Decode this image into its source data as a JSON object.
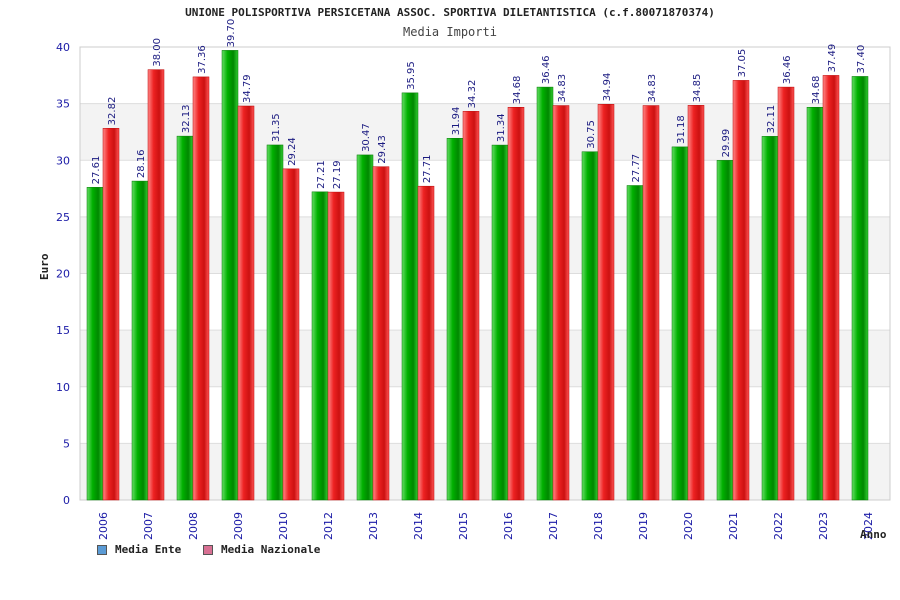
{
  "chart_data": {
    "type": "bar",
    "title": "UNIONE POLISPORTIVA PERSICETANA ASSOC. SPORTIVA DILETANTISTICA (c.f.80071870374)",
    "subtitle": "Media Importi",
    "xlabel": "Anno",
    "ylabel": "Euro",
    "ylim": [
      0,
      40
    ],
    "yticks": [
      0,
      5,
      10,
      15,
      20,
      25,
      30,
      35,
      40
    ],
    "categories": [
      "2006",
      "2007",
      "2008",
      "2009",
      "2010",
      "2012",
      "2013",
      "2014",
      "2015",
      "2016",
      "2017",
      "2018",
      "2019",
      "2020",
      "2021",
      "2022",
      "2023",
      "2024"
    ],
    "series": [
      {
        "name": "Media Ente",
        "legend_color": "#5b9bd5",
        "bar_color": "#00aa00",
        "values": [
          27.61,
          28.16,
          32.13,
          39.7,
          31.35,
          27.21,
          30.47,
          35.95,
          31.94,
          31.34,
          36.46,
          30.75,
          27.77,
          31.18,
          29.99,
          32.11,
          34.68,
          37.4
        ],
        "labels": [
          "27.61",
          "28.16",
          "32.13",
          "39.70",
          "31.35",
          "27.21",
          "30.47",
          "35.95",
          "31.94",
          "31.34",
          "36.46",
          "30.75",
          "27.77",
          "31.18",
          "29.99",
          "32.11",
          "34.68",
          "37.40"
        ]
      },
      {
        "name": "Media Nazionale",
        "legend_color": "#d87093",
        "bar_color": "#ee2222",
        "values": [
          32.82,
          38.0,
          37.36,
          34.79,
          29.24,
          27.19,
          29.43,
          27.71,
          34.32,
          34.68,
          34.83,
          34.94,
          34.83,
          34.85,
          37.05,
          36.46,
          37.49,
          null
        ],
        "labels": [
          "32.82",
          "38.00",
          "37.36",
          "34.79",
          "29.24",
          "27.19",
          "29.43",
          "27.71",
          "34.32",
          "34.68",
          "34.83",
          "34.94",
          "34.83",
          "34.85",
          "37.05",
          "36.46",
          "37.49",
          null
        ]
      }
    ]
  }
}
